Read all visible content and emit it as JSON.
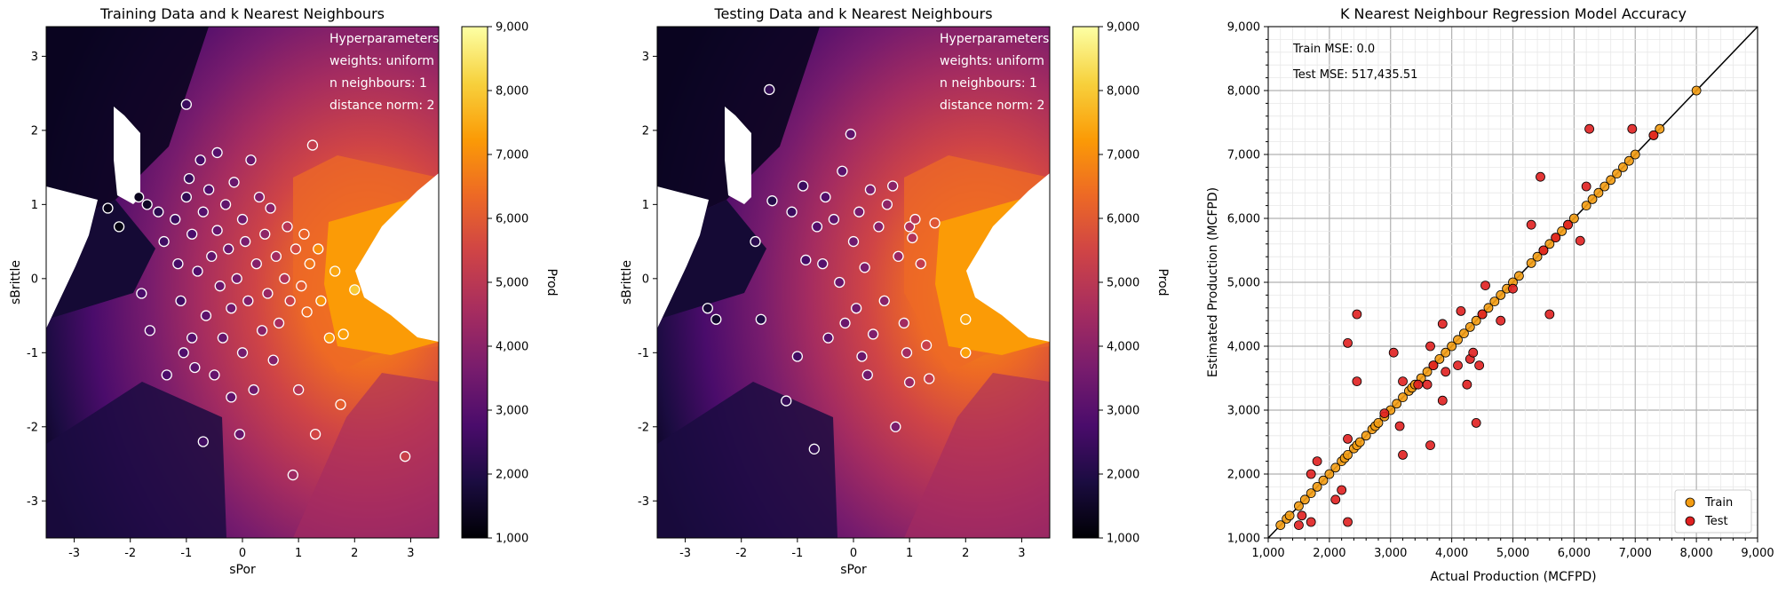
{
  "colors": {
    "colormap": [
      "#000004",
      "#1b0c41",
      "#4a0c6b",
      "#781c6d",
      "#a52c60",
      "#cf4446",
      "#ed6925",
      "#fb9b06",
      "#f7d13d",
      "#fcffa4"
    ],
    "train_fill": "#f39c12",
    "test_fill": "#e02020",
    "marker_edge": "#000000"
  },
  "panels": {
    "train": {
      "title": "Training Data and k Nearest Neighbours",
      "xlabel": "sPor",
      "ylabel": "sBrittle",
      "xticks": [
        "-3",
        "-2",
        "-1",
        "0",
        "1",
        "2",
        "3"
      ],
      "yticks": [
        "-3",
        "-2",
        "-1",
        "0",
        "1",
        "2",
        "3"
      ]
    },
    "test": {
      "title": "Testing Data and k Nearest Neighbours",
      "xlabel": "sPor",
      "ylabel": "sBrittle",
      "xticks": [
        "-3",
        "-2",
        "-1",
        "0",
        "1",
        "2",
        "3"
      ],
      "yticks": [
        "-3",
        "-2",
        "-1",
        "0",
        "1",
        "2",
        "3"
      ]
    },
    "accuracy": {
      "title": "K Nearest Neighbour Regression Model Accuracy",
      "xlabel": "Actual Production (MCFPD)",
      "ylabel": "Estimated Production (MCFPD)",
      "train_mse": "Train MSE: 0.0",
      "test_mse": "Test MSE:  517,435.51",
      "legend_train": "Train",
      "legend_test": "Test",
      "ticks": [
        "1,000",
        "2,000",
        "3,000",
        "4,000",
        "5,000",
        "6,000",
        "7,000",
        "8,000",
        "9,000"
      ]
    }
  },
  "hyperparameters": {
    "heading": "Hyperparameters",
    "weights": "weights: uniform",
    "neighbours": "n neighbours: 1",
    "distance": "distance norm: 2"
  },
  "colorbar": {
    "label": "Prod",
    "ticks": [
      "1,000",
      "2,000",
      "3,000",
      "4,000",
      "5,000",
      "6,000",
      "7,000",
      "8,000",
      "9,000"
    ]
  },
  "chart_data": [
    {
      "type": "scatter",
      "title": "Training Data and k Nearest Neighbours",
      "xlabel": "sPor",
      "ylabel": "sBrittle",
      "xlim": [
        -3.5,
        3.5
      ],
      "ylim": [
        -3.5,
        3.4
      ],
      "points": [
        [
          -2.4,
          0.95,
          1300
        ],
        [
          -2.2,
          0.7,
          1200
        ],
        [
          -1.85,
          1.1,
          1400
        ],
        [
          -1.7,
          1.0,
          1500
        ],
        [
          -1.8,
          -0.2,
          2800
        ],
        [
          -1.65,
          -0.7,
          3000
        ],
        [
          -1.5,
          0.9,
          2200
        ],
        [
          -1.4,
          0.5,
          2600
        ],
        [
          -1.35,
          -1.3,
          2800
        ],
        [
          -1.2,
          0.8,
          2500
        ],
        [
          -1.15,
          0.2,
          2700
        ],
        [
          -1.1,
          -0.3,
          2600
        ],
        [
          -1.05,
          -1.0,
          2900
        ],
        [
          -1.0,
          2.35,
          2500
        ],
        [
          -1.0,
          1.1,
          2300
        ],
        [
          -0.95,
          1.35,
          2400
        ],
        [
          -0.9,
          0.6,
          2800
        ],
        [
          -0.9,
          -0.8,
          3000
        ],
        [
          -0.85,
          -1.2,
          3100
        ],
        [
          -0.8,
          0.1,
          2900
        ],
        [
          -0.75,
          1.6,
          2700
        ],
        [
          -0.7,
          -2.2,
          2600
        ],
        [
          -0.7,
          0.9,
          3000
        ],
        [
          -0.65,
          -0.5,
          3100
        ],
        [
          -0.6,
          1.2,
          2900
        ],
        [
          -0.55,
          0.3,
          3200
        ],
        [
          -0.5,
          -1.3,
          3300
        ],
        [
          -0.45,
          1.7,
          3000
        ],
        [
          -0.45,
          0.65,
          3300
        ],
        [
          -0.4,
          -0.1,
          3400
        ],
        [
          -0.35,
          -0.8,
          3300
        ],
        [
          -0.3,
          1.0,
          3200
        ],
        [
          -0.25,
          0.4,
          3400
        ],
        [
          -0.2,
          -0.4,
          3500
        ],
        [
          -0.2,
          -1.6,
          3200
        ],
        [
          -0.15,
          1.3,
          3400
        ],
        [
          -0.1,
          0.0,
          3600
        ],
        [
          -0.05,
          -2.1,
          3300
        ],
        [
          0.0,
          0.8,
          3500
        ],
        [
          0.0,
          -1.0,
          3600
        ],
        [
          0.05,
          0.5,
          3700
        ],
        [
          0.1,
          -0.3,
          3800
        ],
        [
          0.15,
          1.6,
          3400
        ],
        [
          0.2,
          -1.5,
          3500
        ],
        [
          0.25,
          0.2,
          3900
        ],
        [
          0.3,
          1.1,
          3800
        ],
        [
          0.35,
          -0.7,
          4000
        ],
        [
          0.4,
          0.6,
          4100
        ],
        [
          0.45,
          -0.2,
          4300
        ],
        [
          0.5,
          0.95,
          4000
        ],
        [
          0.55,
          -1.1,
          3900
        ],
        [
          0.6,
          0.3,
          4500
        ],
        [
          0.65,
          -0.6,
          4600
        ],
        [
          0.75,
          0.0,
          4800
        ],
        [
          0.8,
          0.7,
          4900
        ],
        [
          0.85,
          -0.3,
          5300
        ],
        [
          0.9,
          -2.65,
          4400
        ],
        [
          0.95,
          0.4,
          5600
        ],
        [
          1.0,
          -1.5,
          4900
        ],
        [
          1.05,
          -0.1,
          6000
        ],
        [
          1.1,
          0.6,
          6200
        ],
        [
          1.15,
          -0.45,
          6400
        ],
        [
          1.2,
          0.2,
          6600
        ],
        [
          1.25,
          1.8,
          5200
        ],
        [
          1.3,
          -2.1,
          5500
        ],
        [
          1.35,
          0.4,
          7000
        ],
        [
          1.4,
          -0.3,
          7100
        ],
        [
          1.55,
          -0.8,
          7300
        ],
        [
          1.65,
          0.1,
          7400
        ],
        [
          1.75,
          -1.7,
          6100
        ],
        [
          1.8,
          -0.75,
          7300
        ],
        [
          2.0,
          -0.15,
          8000
        ],
        [
          2.9,
          -2.4,
          5300
        ]
      ]
    },
    {
      "type": "scatter",
      "title": "Testing Data and k Nearest Neighbours",
      "xlabel": "sPor",
      "ylabel": "sBrittle",
      "xlim": [
        -3.5,
        3.5
      ],
      "ylim": [
        -3.5,
        3.4
      ],
      "points": [
        [
          -2.6,
          -0.4,
          1700
        ],
        [
          -2.45,
          -0.55,
          1600
        ],
        [
          -1.75,
          0.5,
          2200
        ],
        [
          -1.65,
          -0.55,
          2000
        ],
        [
          -1.5,
          2.55,
          2300
        ],
        [
          -1.45,
          1.05,
          2100
        ],
        [
          -1.2,
          -1.65,
          2400
        ],
        [
          -1.1,
          0.9,
          2500
        ],
        [
          -1.0,
          -1.05,
          2600
        ],
        [
          -0.9,
          1.25,
          2500
        ],
        [
          -0.85,
          0.25,
          2700
        ],
        [
          -0.7,
          -2.3,
          2300
        ],
        [
          -0.65,
          0.7,
          2900
        ],
        [
          -0.55,
          0.2,
          3000
        ],
        [
          -0.5,
          1.1,
          2900
        ],
        [
          -0.45,
          -0.8,
          3100
        ],
        [
          -0.35,
          0.8,
          3200
        ],
        [
          -0.25,
          -0.05,
          3300
        ],
        [
          -0.2,
          1.45,
          3100
        ],
        [
          -0.15,
          -0.6,
          3400
        ],
        [
          -0.05,
          1.95,
          3200
        ],
        [
          0.0,
          0.5,
          3500
        ],
        [
          0.05,
          -0.4,
          3500
        ],
        [
          0.1,
          0.9,
          3600
        ],
        [
          0.15,
          -1.05,
          3400
        ],
        [
          0.2,
          0.15,
          3700
        ],
        [
          0.25,
          -1.3,
          3500
        ],
        [
          0.3,
          1.2,
          3700
        ],
        [
          0.35,
          -0.75,
          3800
        ],
        [
          0.45,
          0.7,
          3900
        ],
        [
          0.55,
          -0.3,
          4000
        ],
        [
          0.6,
          1.0,
          4100
        ],
        [
          0.7,
          1.25,
          4000
        ],
        [
          0.75,
          -2.0,
          3700
        ],
        [
          0.8,
          0.3,
          4300
        ],
        [
          0.9,
          -0.6,
          4500
        ],
        [
          0.95,
          -1.0,
          4500
        ],
        [
          1.0,
          0.7,
          4700
        ],
        [
          1.0,
          -1.4,
          4300
        ],
        [
          1.05,
          0.55,
          4800
        ],
        [
          1.1,
          0.8,
          5000
        ],
        [
          1.2,
          0.2,
          5200
        ],
        [
          1.3,
          -0.9,
          5300
        ],
        [
          1.35,
          -1.35,
          5200
        ],
        [
          1.45,
          0.75,
          5900
        ],
        [
          2.0,
          -0.55,
          7400
        ],
        [
          2.0,
          -1.0,
          7300
        ]
      ]
    },
    {
      "type": "scatter",
      "title": "K Nearest Neighbour Regression Model Accuracy",
      "xlabel": "Actual Production (MCFPD)",
      "ylabel": "Estimated Production (MCFPD)",
      "xlim": [
        1000,
        9000
      ],
      "ylim": [
        1000,
        9000
      ],
      "identity_line": true,
      "grid": true,
      "legend_position": "lower-right",
      "series": [
        {
          "name": "Train",
          "points": [
            [
              1200,
              1200
            ],
            [
              1300,
              1300
            ],
            [
              1350,
              1350
            ],
            [
              1500,
              1500
            ],
            [
              1600,
              1600
            ],
            [
              1700,
              1700
            ],
            [
              1800,
              1800
            ],
            [
              1900,
              1900
            ],
            [
              2000,
              2000
            ],
            [
              2100,
              2100
            ],
            [
              2200,
              2200
            ],
            [
              2250,
              2250
            ],
            [
              2300,
              2300
            ],
            [
              2400,
              2400
            ],
            [
              2450,
              2450
            ],
            [
              2500,
              2500
            ],
            [
              2600,
              2600
            ],
            [
              2700,
              2700
            ],
            [
              2750,
              2750
            ],
            [
              2800,
              2800
            ],
            [
              2900,
              2900
            ],
            [
              3000,
              3000
            ],
            [
              3100,
              3100
            ],
            [
              3200,
              3200
            ],
            [
              3300,
              3300
            ],
            [
              3350,
              3350
            ],
            [
              3400,
              3400
            ],
            [
              3500,
              3500
            ],
            [
              3600,
              3600
            ],
            [
              3700,
              3700
            ],
            [
              3800,
              3800
            ],
            [
              3900,
              3900
            ],
            [
              4000,
              4000
            ],
            [
              4100,
              4100
            ],
            [
              4200,
              4200
            ],
            [
              4300,
              4300
            ],
            [
              4400,
              4400
            ],
            [
              4500,
              4500
            ],
            [
              4600,
              4600
            ],
            [
              4700,
              4700
            ],
            [
              4800,
              4800
            ],
            [
              4900,
              4900
            ],
            [
              5000,
              5000
            ],
            [
              5100,
              5100
            ],
            [
              5300,
              5300
            ],
            [
              5400,
              5400
            ],
            [
              5500,
              5500
            ],
            [
              5600,
              5600
            ],
            [
              5700,
              5700
            ],
            [
              5800,
              5800
            ],
            [
              5900,
              5900
            ],
            [
              6000,
              6000
            ],
            [
              6200,
              6200
            ],
            [
              6300,
              6300
            ],
            [
              6400,
              6400
            ],
            [
              6500,
              6500
            ],
            [
              6600,
              6600
            ],
            [
              6700,
              6700
            ],
            [
              6800,
              6800
            ],
            [
              6900,
              6900
            ],
            [
              7000,
              7000
            ],
            [
              7300,
              7300
            ],
            [
              7400,
              7400
            ],
            [
              8000,
              8000
            ]
          ]
        },
        {
          "name": "Test",
          "points": [
            [
              1500,
              1200
            ],
            [
              1550,
              1350
            ],
            [
              1700,
              1250
            ],
            [
              1700,
              2000
            ],
            [
              1800,
              2200
            ],
            [
              2100,
              1600
            ],
            [
              2200,
              1750
            ],
            [
              2300,
              1250
            ],
            [
              2300,
              2550
            ],
            [
              2300,
              4050
            ],
            [
              2450,
              3450
            ],
            [
              2450,
              4500
            ],
            [
              2900,
              2950
            ],
            [
              3050,
              3900
            ],
            [
              3150,
              2750
            ],
            [
              3200,
              2300
            ],
            [
              3200,
              3450
            ],
            [
              3450,
              3400
            ],
            [
              3600,
              3400
            ],
            [
              3650,
              2450
            ],
            [
              3650,
              4000
            ],
            [
              3700,
              3700
            ],
            [
              3850,
              4350
            ],
            [
              3850,
              3150
            ],
            [
              3900,
              3600
            ],
            [
              4100,
              3700
            ],
            [
              4150,
              4550
            ],
            [
              4250,
              3400
            ],
            [
              4300,
              3800
            ],
            [
              4350,
              3900
            ],
            [
              4400,
              2800
            ],
            [
              4450,
              3700
            ],
            [
              4500,
              4500
            ],
            [
              4550,
              4950
            ],
            [
              4800,
              4400
            ],
            [
              5000,
              4900
            ],
            [
              5300,
              5900
            ],
            [
              5450,
              6650
            ],
            [
              5500,
              5500
            ],
            [
              5600,
              4500
            ],
            [
              5700,
              5700
            ],
            [
              5900,
              5900
            ],
            [
              6100,
              5650
            ],
            [
              6200,
              6500
            ],
            [
              6250,
              7400
            ],
            [
              6950,
              7400
            ],
            [
              7300,
              7300
            ]
          ]
        }
      ]
    }
  ]
}
